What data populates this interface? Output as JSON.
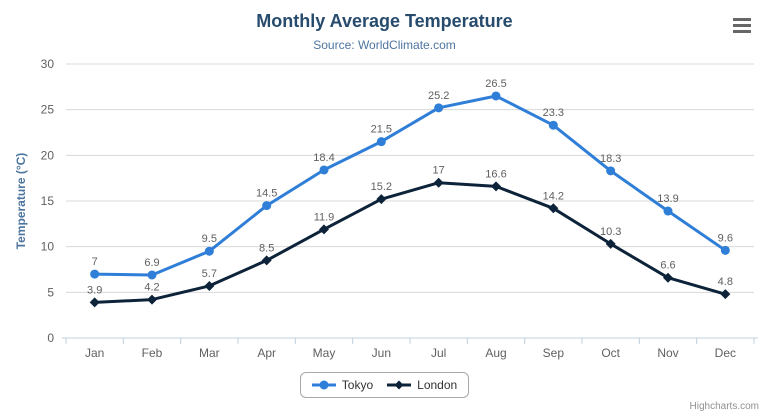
{
  "header": {
    "title": "Monthly Average Temperature",
    "subtitle": "Source: WorldClimate.com"
  },
  "context_menu": {
    "icon": "hamburger-icon"
  },
  "credit": "Highcharts.com",
  "colors": {
    "title": "#274b6d",
    "subtitle": "#4d759e",
    "axis_title": "#4d759e",
    "tick_label": "#606060",
    "data_label": "#606060",
    "gridline": "#d8d8d8",
    "axis_line": "#c0d0e0",
    "tokyo": "#2f7ed8",
    "london": "#0d233a"
  },
  "chart_data": {
    "type": "line",
    "title": "Monthly Average Temperature",
    "subtitle": "Source: WorldClimate.com",
    "categories": [
      "Jan",
      "Feb",
      "Mar",
      "Apr",
      "May",
      "Jun",
      "Jul",
      "Aug",
      "Sep",
      "Oct",
      "Nov",
      "Dec"
    ],
    "series": [
      {
        "name": "Tokyo",
        "color": "#2f7ed8",
        "marker": "circle",
        "values": [
          7,
          6.9,
          9.5,
          14.5,
          18.4,
          21.5,
          25.2,
          26.5,
          23.3,
          18.3,
          13.9,
          9.6
        ]
      },
      {
        "name": "London",
        "color": "#0d233a",
        "marker": "diamond",
        "values": [
          3.9,
          4.2,
          5.7,
          8.5,
          11.9,
          15.2,
          17,
          16.6,
          14.2,
          10.3,
          6.6,
          4.8
        ]
      }
    ],
    "xlabel": "",
    "ylabel": "Temperature (°C)",
    "ylim": [
      0,
      30
    ],
    "ytick_interval": 5,
    "grid": true,
    "data_labels": true,
    "legend_position": "bottom-center"
  }
}
